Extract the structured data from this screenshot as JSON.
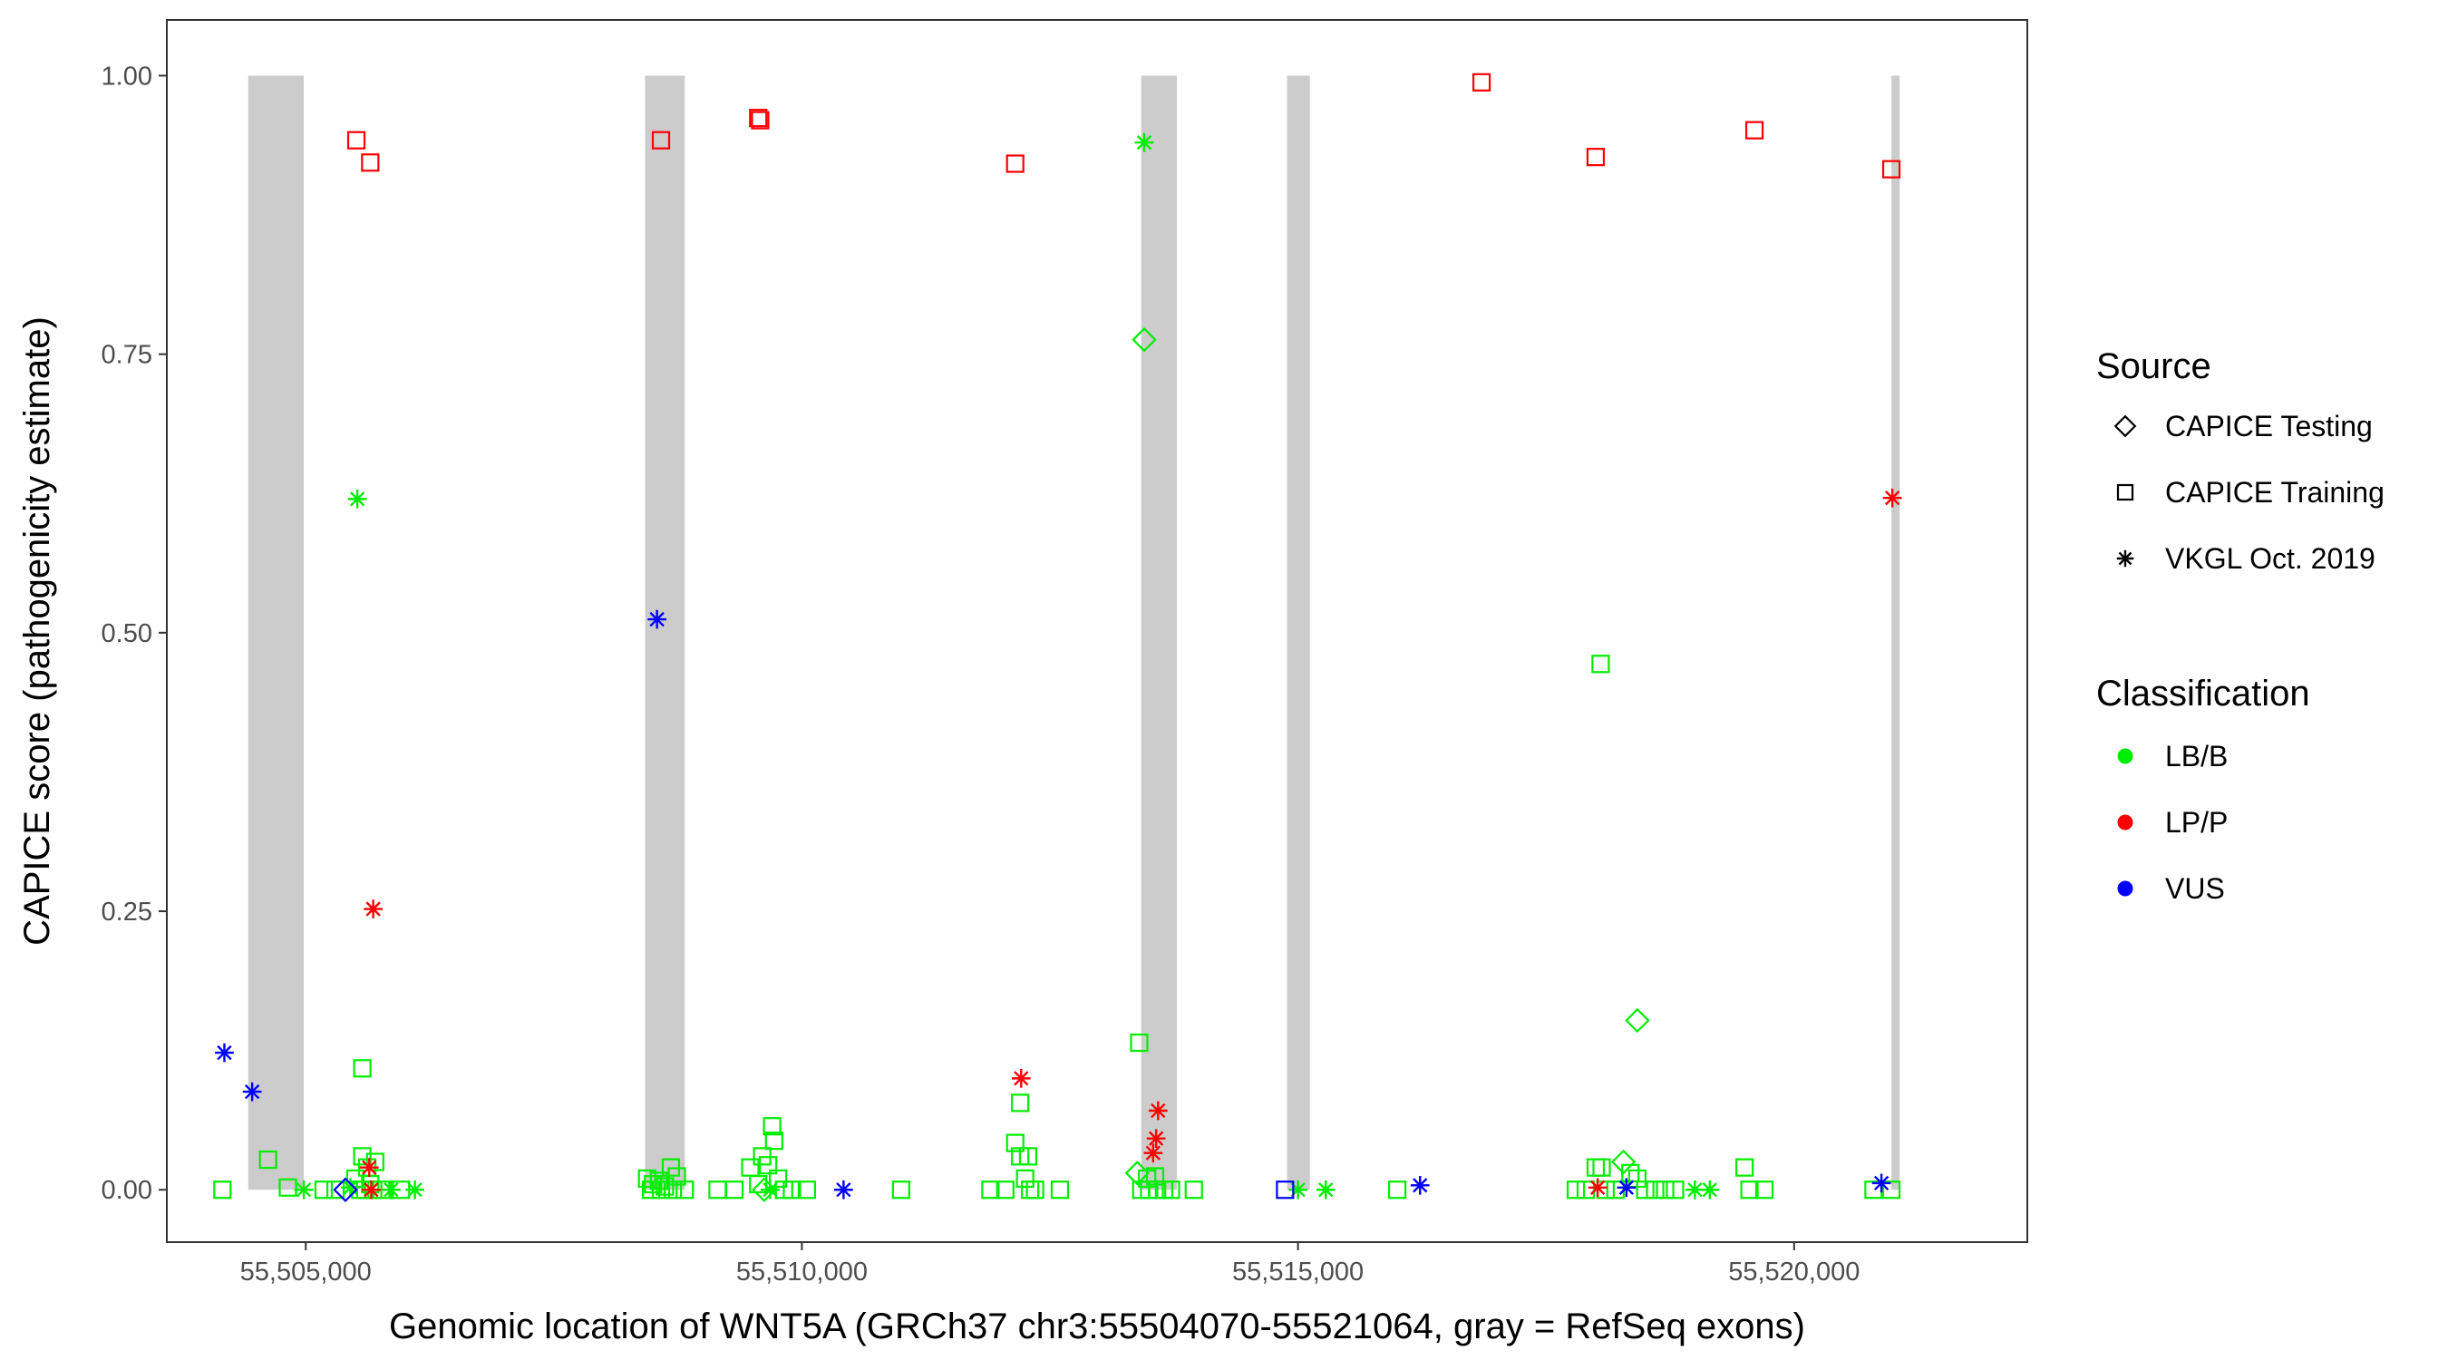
{
  "chart_data": {
    "type": "scatter",
    "title": "",
    "xlabel": "Genomic location of WNT5A (GRCh37 chr3:55504070-55521064, gray = RefSeq exons)",
    "ylabel": "CAPICE score (pathogenicity estimate)",
    "xlim": [
      55503600,
      55522350
    ],
    "ylim": [
      -0.047,
      1.05
    ],
    "x_ticks": [
      55505000,
      55510000,
      55515000,
      55520000
    ],
    "x_tick_labels": [
      "55,505,000",
      "55,510,000",
      "55,515,000",
      "55,520,000"
    ],
    "y_ticks": [
      0,
      0.25,
      0.5,
      0.75,
      1.0
    ],
    "y_tick_labels": [
      "0.00",
      "0.25",
      "0.50",
      "0.75",
      "1.00"
    ],
    "grid": false,
    "exons": [
      [
        55504420,
        55504980
      ],
      [
        55508420,
        55508820
      ],
      [
        55513420,
        55513780
      ],
      [
        55514890,
        55515120
      ],
      [
        55520980,
        55521064
      ]
    ],
    "exon_color": "#cccccc",
    "legend": {
      "position": "right",
      "source_title": "Source",
      "source_items": [
        {
          "label": "CAPICE Testing",
          "shape": "diamond"
        },
        {
          "label": "CAPICE Training",
          "shape": "square"
        },
        {
          "label": "VKGL Oct. 2019",
          "shape": "asterisk"
        }
      ],
      "class_title": "Classification",
      "class_items": [
        {
          "label": "LB/B",
          "color": "#00ee00"
        },
        {
          "label": "LP/P",
          "color": "#ff0000"
        },
        {
          "label": "VUS",
          "color": "#0000ff"
        }
      ]
    },
    "series": [
      {
        "name": "LB/B",
        "color": "#00ee00",
        "points": [
          {
            "x": 55505520,
            "y": 0.62,
            "shape": "asterisk"
          },
          {
            "x": 55505570,
            "y": 0.109,
            "shape": "square"
          },
          {
            "x": 55505570,
            "y": 0.03,
            "shape": "square"
          },
          {
            "x": 55505620,
            "y": 0.02,
            "shape": "square"
          },
          {
            "x": 55505700,
            "y": 0.025,
            "shape": "square"
          },
          {
            "x": 55505500,
            "y": 0.01,
            "shape": "square"
          },
          {
            "x": 55505650,
            "y": 0.005,
            "shape": "square"
          },
          {
            "x": 55505450,
            "y": 0.002,
            "shape": "asterisk"
          },
          {
            "x": 55505550,
            "y": 0.0,
            "shape": "square"
          },
          {
            "x": 55505600,
            "y": 0.0,
            "shape": "square"
          },
          {
            "x": 55505680,
            "y": 0.0,
            "shape": "square"
          },
          {
            "x": 55505760,
            "y": 0.0,
            "shape": "square"
          },
          {
            "x": 55505860,
            "y": 0.0,
            "shape": "asterisk"
          },
          {
            "x": 55505960,
            "y": 0.0,
            "shape": "square"
          },
          {
            "x": 55506100,
            "y": 0.0,
            "shape": "asterisk"
          },
          {
            "x": 55505180,
            "y": 0.0,
            "shape": "square"
          },
          {
            "x": 55505300,
            "y": 0.0,
            "shape": "square"
          },
          {
            "x": 55504160,
            "y": 0.0,
            "shape": "square"
          },
          {
            "x": 55504620,
            "y": 0.027,
            "shape": "square"
          },
          {
            "x": 55504820,
            "y": 0.002,
            "shape": "square"
          },
          {
            "x": 55504980,
            "y": 0.0,
            "shape": "asterisk"
          },
          {
            "x": 55508440,
            "y": 0.01,
            "shape": "square"
          },
          {
            "x": 55508500,
            "y": 0.005,
            "shape": "square"
          },
          {
            "x": 55508560,
            "y": 0.008,
            "shape": "square"
          },
          {
            "x": 55508620,
            "y": 0.003,
            "shape": "square"
          },
          {
            "x": 55508680,
            "y": 0.02,
            "shape": "square"
          },
          {
            "x": 55508740,
            "y": 0.012,
            "shape": "square"
          },
          {
            "x": 55508480,
            "y": 0.0,
            "shape": "square"
          },
          {
            "x": 55508580,
            "y": 0.0,
            "shape": "square"
          },
          {
            "x": 55508700,
            "y": 0.0,
            "shape": "square"
          },
          {
            "x": 55508820,
            "y": 0.0,
            "shape": "square"
          },
          {
            "x": 55509150,
            "y": 0.0,
            "shape": "square"
          },
          {
            "x": 55509320,
            "y": 0.0,
            "shape": "square"
          },
          {
            "x": 55509480,
            "y": 0.02,
            "shape": "square"
          },
          {
            "x": 55509560,
            "y": 0.005,
            "shape": "square"
          },
          {
            "x": 55509600,
            "y": 0.03,
            "shape": "square"
          },
          {
            "x": 55509680,
            "y": 0.0,
            "shape": "asterisk"
          },
          {
            "x": 55509720,
            "y": 0.044,
            "shape": "square"
          },
          {
            "x": 55509700,
            "y": 0.057,
            "shape": "square"
          },
          {
            "x": 55509660,
            "y": 0.022,
            "shape": "square"
          },
          {
            "x": 55509760,
            "y": 0.01,
            "shape": "square"
          },
          {
            "x": 55509820,
            "y": 0.0,
            "shape": "square"
          },
          {
            "x": 55509900,
            "y": 0.0,
            "shape": "square"
          },
          {
            "x": 55510050,
            "y": 0.0,
            "shape": "square"
          },
          {
            "x": 55509620,
            "y": 0.0,
            "shape": "diamond"
          },
          {
            "x": 55511000,
            "y": 0.0,
            "shape": "square"
          },
          {
            "x": 55511900,
            "y": 0.0,
            "shape": "square"
          },
          {
            "x": 55512050,
            "y": 0.0,
            "shape": "square"
          },
          {
            "x": 55512150,
            "y": 0.042,
            "shape": "square"
          },
          {
            "x": 55512200,
            "y": 0.078,
            "shape": "square"
          },
          {
            "x": 55512200,
            "y": 0.03,
            "shape": "square"
          },
          {
            "x": 55512280,
            "y": 0.03,
            "shape": "square"
          },
          {
            "x": 55512250,
            "y": 0.01,
            "shape": "square"
          },
          {
            "x": 55512300,
            "y": 0.0,
            "shape": "square"
          },
          {
            "x": 55512350,
            "y": 0.0,
            "shape": "square"
          },
          {
            "x": 55512600,
            "y": 0.0,
            "shape": "square"
          },
          {
            "x": 55513450,
            "y": 0.94,
            "shape": "asterisk"
          },
          {
            "x": 55513450,
            "y": 0.763,
            "shape": "diamond"
          },
          {
            "x": 55513400,
            "y": 0.132,
            "shape": "square"
          },
          {
            "x": 55513380,
            "y": 0.015,
            "shape": "diamond"
          },
          {
            "x": 55513480,
            "y": 0.01,
            "shape": "square"
          },
          {
            "x": 55513560,
            "y": 0.012,
            "shape": "square"
          },
          {
            "x": 55513420,
            "y": 0.0,
            "shape": "square"
          },
          {
            "x": 55513500,
            "y": 0.0,
            "shape": "square"
          },
          {
            "x": 55513580,
            "y": 0.0,
            "shape": "square"
          },
          {
            "x": 55513650,
            "y": 0.0,
            "shape": "square"
          },
          {
            "x": 55513720,
            "y": 0.0,
            "shape": "square"
          },
          {
            "x": 55513950,
            "y": 0.0,
            "shape": "square"
          },
          {
            "x": 55515000,
            "y": 0.0,
            "shape": "asterisk"
          },
          {
            "x": 55515280,
            "y": 0.0,
            "shape": "asterisk"
          },
          {
            "x": 55516000,
            "y": 0.0,
            "shape": "square"
          },
          {
            "x": 55518050,
            "y": 0.472,
            "shape": "square"
          },
          {
            "x": 55518420,
            "y": 0.152,
            "shape": "diamond"
          },
          {
            "x": 55518280,
            "y": 0.025,
            "shape": "diamond"
          },
          {
            "x": 55518000,
            "y": 0.02,
            "shape": "square"
          },
          {
            "x": 55518060,
            "y": 0.02,
            "shape": "square"
          },
          {
            "x": 55518350,
            "y": 0.015,
            "shape": "square"
          },
          {
            "x": 55518420,
            "y": 0.01,
            "shape": "square"
          },
          {
            "x": 55517800,
            "y": 0.0,
            "shape": "square"
          },
          {
            "x": 55517900,
            "y": 0.0,
            "shape": "square"
          },
          {
            "x": 55518100,
            "y": 0.0,
            "shape": "square"
          },
          {
            "x": 55518200,
            "y": 0.0,
            "shape": "square"
          },
          {
            "x": 55518500,
            "y": 0.0,
            "shape": "square"
          },
          {
            "x": 55518600,
            "y": 0.0,
            "shape": "square"
          },
          {
            "x": 55518700,
            "y": 0.0,
            "shape": "square"
          },
          {
            "x": 55518800,
            "y": 0.0,
            "shape": "square"
          },
          {
            "x": 55519000,
            "y": 0.0,
            "shape": "asterisk"
          },
          {
            "x": 55519150,
            "y": 0.0,
            "shape": "asterisk"
          },
          {
            "x": 55519500,
            "y": 0.02,
            "shape": "square"
          },
          {
            "x": 55519550,
            "y": 0.0,
            "shape": "square"
          },
          {
            "x": 55519700,
            "y": 0.0,
            "shape": "square"
          },
          {
            "x": 55520800,
            "y": 0.0,
            "shape": "square"
          },
          {
            "x": 55520980,
            "y": 0.0,
            "shape": "square"
          }
        ]
      },
      {
        "name": "LP/P",
        "color": "#ff0000",
        "points": [
          {
            "x": 55505510,
            "y": 0.942,
            "shape": "square"
          },
          {
            "x": 55505650,
            "y": 0.922,
            "shape": "square"
          },
          {
            "x": 55505680,
            "y": 0.252,
            "shape": "asterisk"
          },
          {
            "x": 55505640,
            "y": 0.02,
            "shape": "asterisk"
          },
          {
            "x": 55505660,
            "y": 0.0,
            "shape": "asterisk"
          },
          {
            "x": 55508580,
            "y": 0.942,
            "shape": "square"
          },
          {
            "x": 55509560,
            "y": 0.962,
            "shape": "square"
          },
          {
            "x": 55509580,
            "y": 0.96,
            "shape": "square"
          },
          {
            "x": 55512150,
            "y": 0.921,
            "shape": "square"
          },
          {
            "x": 55512210,
            "y": 0.1,
            "shape": "asterisk"
          },
          {
            "x": 55513590,
            "y": 0.071,
            "shape": "asterisk"
          },
          {
            "x": 55513570,
            "y": 0.046,
            "shape": "asterisk"
          },
          {
            "x": 55513540,
            "y": 0.033,
            "shape": "asterisk"
          },
          {
            "x": 55516850,
            "y": 0.994,
            "shape": "square"
          },
          {
            "x": 55518000,
            "y": 0.927,
            "shape": "square"
          },
          {
            "x": 55518020,
            "y": 0.002,
            "shape": "asterisk"
          },
          {
            "x": 55519600,
            "y": 0.951,
            "shape": "square"
          },
          {
            "x": 55520980,
            "y": 0.916,
            "shape": "square"
          },
          {
            "x": 55520990,
            "y": 0.621,
            "shape": "asterisk"
          }
        ]
      },
      {
        "name": "VUS",
        "color": "#0000ff",
        "points": [
          {
            "x": 55504180,
            "y": 0.123,
            "shape": "asterisk"
          },
          {
            "x": 55504460,
            "y": 0.088,
            "shape": "asterisk"
          },
          {
            "x": 55508540,
            "y": 0.512,
            "shape": "asterisk"
          },
          {
            "x": 55510420,
            "y": 0.0,
            "shape": "asterisk"
          },
          {
            "x": 55514870,
            "y": 0.0,
            "shape": "square"
          },
          {
            "x": 55516230,
            "y": 0.004,
            "shape": "asterisk"
          },
          {
            "x": 55518310,
            "y": 0.002,
            "shape": "asterisk"
          },
          {
            "x": 55520880,
            "y": 0.006,
            "shape": "asterisk"
          },
          {
            "x": 55505400,
            "y": 0.0,
            "shape": "diamond"
          }
        ]
      }
    ]
  }
}
